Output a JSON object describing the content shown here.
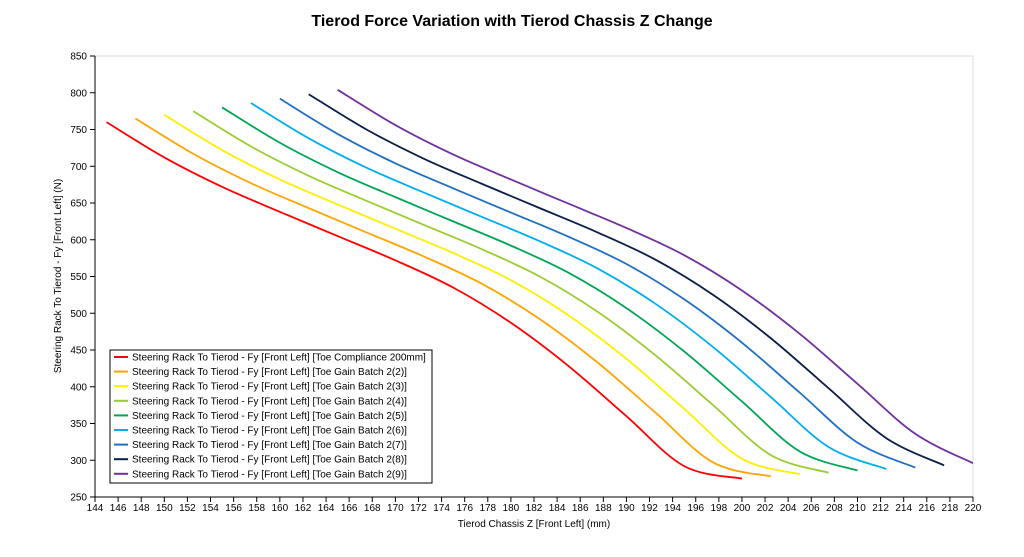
{
  "chart_data": {
    "type": "line",
    "title": "Tierod Force Variation with Tierod Chassis Z Change",
    "xlabel": "Tierod Chassis Z [Front Left] (mm)",
    "ylabel": "Steering Rack To Tierod - Fy [Front Left] (N)",
    "xlim": [
      144,
      220
    ],
    "ylim": [
      250,
      850
    ],
    "xticks": [
      144,
      146,
      148,
      150,
      152,
      154,
      156,
      158,
      160,
      162,
      164,
      166,
      168,
      170,
      172,
      174,
      176,
      178,
      180,
      182,
      184,
      186,
      188,
      190,
      192,
      194,
      196,
      198,
      200,
      202,
      204,
      206,
      208,
      210,
      212,
      214,
      216,
      218,
      220
    ],
    "yticks": [
      250,
      300,
      350,
      400,
      450,
      500,
      550,
      600,
      650,
      700,
      750,
      800,
      850
    ],
    "grid": false,
    "legend_position": "bottom-left",
    "series": [
      {
        "name": "Steering Rack To Tierod - Fy [Front Left] [Toe Compliance 200mm]",
        "color": "#ff0000",
        "x": [
          145,
          150,
          155,
          160,
          165,
          170,
          175,
          180,
          185,
          190,
          195,
          200
        ],
        "y": [
          760,
          712,
          672,
          638,
          605,
          572,
          535,
          487,
          428,
          360,
          292,
          275
        ]
      },
      {
        "name": "Steering Rack To Tierod - Fy [Front Left] [Toe Gain Batch 2(2)]",
        "color": "#ffa500",
        "x": [
          147.5,
          152.5,
          157.5,
          162.5,
          167.5,
          172.5,
          177.5,
          182.5,
          187.5,
          192.5,
          197.5,
          202.5
        ],
        "y": [
          765,
          717,
          677,
          643,
          610,
          577,
          540,
          492,
          433,
          365,
          297,
          278
        ]
      },
      {
        "name": "Steering Rack To Tierod - Fy [Front Left] [Toe Gain Batch 2(3)]",
        "color": "#ffee00",
        "x": [
          150,
          155,
          160,
          165,
          170,
          175,
          180,
          185,
          190,
          195,
          200,
          205
        ],
        "y": [
          770,
          722,
          682,
          648,
          615,
          582,
          545,
          497,
          438,
          370,
          302,
          281
        ]
      },
      {
        "name": "Steering Rack To Tierod - Fy [Front Left] [Toe Gain Batch 2(4)]",
        "color": "#9acd32",
        "x": [
          152.5,
          157.5,
          162.5,
          167.5,
          172.5,
          177.5,
          182.5,
          187.5,
          192.5,
          197.5,
          202.5,
          207.5
        ],
        "y": [
          775,
          727,
          687,
          653,
          620,
          587,
          550,
          502,
          443,
          375,
          307,
          283
        ]
      },
      {
        "name": "Steering Rack To Tierod - Fy [Front Left] [Toe Gain Batch 2(5)]",
        "color": "#00a651",
        "x": [
          155,
          160,
          165,
          170,
          175,
          180,
          185,
          190,
          195,
          200,
          205,
          210
        ],
        "y": [
          780,
          732,
          692,
          658,
          625,
          592,
          555,
          507,
          448,
          380,
          312,
          286
        ]
      },
      {
        "name": "Steering Rack To Tierod - Fy [Front Left] [Toe Gain Batch 2(6)]",
        "color": "#00aeef",
        "x": [
          157.5,
          162.5,
          167.5,
          172.5,
          177.5,
          182.5,
          187.5,
          192.5,
          197.5,
          202.5,
          207.5,
          212.5
        ],
        "y": [
          786,
          738,
          698,
          664,
          631,
          598,
          561,
          513,
          454,
          386,
          318,
          288
        ]
      },
      {
        "name": "Steering Rack To Tierod - Fy [Front Left] [Toe Gain Batch 2(7)]",
        "color": "#1f6fc4",
        "x": [
          160,
          165,
          170,
          175,
          180,
          185,
          190,
          195,
          200,
          205,
          210,
          215
        ],
        "y": [
          792,
          744,
          704,
          670,
          637,
          604,
          567,
          519,
          460,
          392,
          324,
          290
        ]
      },
      {
        "name": "Steering Rack To Tierod - Fy [Front Left] [Toe Gain Batch 2(8)]",
        "color": "#0a1e4a",
        "x": [
          162.5,
          167.5,
          172.5,
          177.5,
          182.5,
          187.5,
          192.5,
          197.5,
          202.5,
          207.5,
          212.5,
          217.5
        ],
        "y": [
          798,
          750,
          710,
          676,
          643,
          610,
          573,
          525,
          466,
          398,
          330,
          293
        ]
      },
      {
        "name": "Steering Rack To Tierod - Fy [Front Left] [Toe Gain Batch 2(9)]",
        "color": "#7030a0",
        "x": [
          165,
          170,
          175,
          180,
          185,
          190,
          195,
          200,
          205,
          210,
          215,
          220
        ],
        "y": [
          804,
          756,
          716,
          682,
          649,
          616,
          579,
          531,
          472,
          404,
          336,
          296
        ]
      }
    ]
  }
}
